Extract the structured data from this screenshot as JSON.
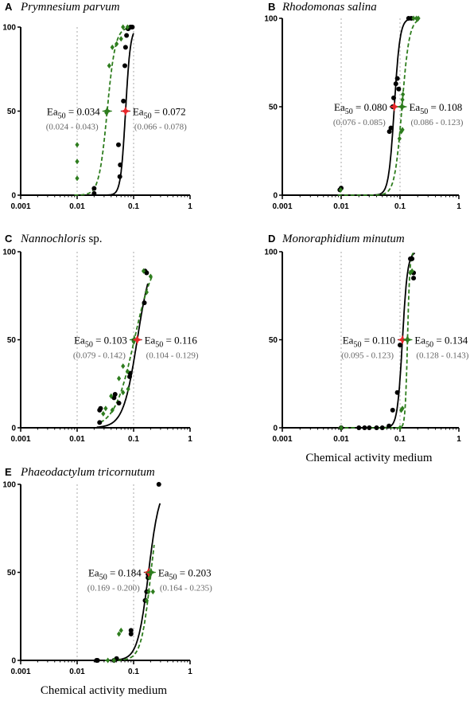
{
  "chart_data": [
    {
      "type": "scatter",
      "panel": "A",
      "title": "Prymnesium parvum",
      "xlabel": "",
      "x_scale": "log",
      "xlim": [
        0.001,
        1
      ],
      "ylim": [
        0,
        100
      ],
      "xticks": [
        "0.001",
        "0.01",
        "0.1",
        "1"
      ],
      "yticks": [
        "0",
        "50",
        "100"
      ],
      "reference_lines": [
        0.01,
        0.1
      ],
      "series": [
        {
          "color": "#000000",
          "marker": "circle",
          "line": "solid",
          "ec50": 0.072,
          "slope": 10,
          "points": [
            [
              0.02,
              1
            ],
            [
              0.02,
              4
            ],
            [
              0.054,
              30
            ],
            [
              0.057,
              11
            ],
            [
              0.058,
              18
            ],
            [
              0.066,
              56
            ],
            [
              0.07,
              77
            ],
            [
              0.072,
              88
            ],
            [
              0.075,
              95
            ],
            [
              0.08,
              99
            ],
            [
              0.088,
              100
            ],
            [
              0.09,
              100
            ],
            [
              0.095,
              100
            ]
          ]
        },
        {
          "color": "#2e7d1e",
          "marker": "diamond",
          "line": "dashed",
          "ec50": 0.034,
          "slope": 6,
          "points": [
            [
              0.01,
              10
            ],
            [
              0.01,
              20
            ],
            [
              0.01,
              30
            ],
            [
              0.033,
              49
            ],
            [
              0.037,
              77
            ],
            [
              0.042,
              88
            ],
            [
              0.05,
              90
            ],
            [
              0.06,
              93
            ],
            [
              0.065,
              100
            ],
            [
              0.078,
              100
            ]
          ]
        }
      ],
      "annotations": [
        {
          "label": "Ea",
          "sub": "50",
          "value": " = 0.034",
          "ci": "(0.024 - 0.043)",
          "side": "left",
          "anchor_x": 0.034
        },
        {
          "label": "Ea",
          "sub": "50",
          "value": " = 0.072",
          "ci": "(0.066 - 0.078)",
          "side": "right",
          "anchor_x": 0.072
        }
      ]
    },
    {
      "type": "scatter",
      "panel": "B",
      "title": "Rhodomonas salina",
      "xlabel": "",
      "x_scale": "log",
      "xlim": [
        0.001,
        1
      ],
      "ylim": [
        0,
        100
      ],
      "xticks": [
        "0.001",
        "0.01",
        "0.1",
        "1"
      ],
      "yticks": [
        "0",
        "50",
        "100"
      ],
      "reference_lines": [
        0.01,
        0.1
      ],
      "series": [
        {
          "color": "#000000",
          "marker": "circle",
          "line": "solid",
          "ec50": 0.08,
          "slope": 9,
          "points": [
            [
              0.0095,
              3
            ],
            [
              0.01,
              4
            ],
            [
              0.066,
              36
            ],
            [
              0.07,
              38
            ],
            [
              0.075,
              50
            ],
            [
              0.078,
              55
            ],
            [
              0.085,
              63
            ],
            [
              0.09,
              66
            ],
            [
              0.095,
              60
            ],
            [
              0.14,
              100
            ],
            [
              0.155,
              100
            ]
          ]
        },
        {
          "color": "#2e7d1e",
          "marker": "diamond",
          "line": "dashed",
          "ec50": 0.108,
          "slope": 7,
          "points": [
            [
              0.0098,
              3
            ],
            [
              0.098,
              32
            ],
            [
              0.105,
              36
            ],
            [
              0.11,
              37
            ],
            [
              0.11,
              54
            ],
            [
              0.112,
              57
            ],
            [
              0.17,
              100
            ],
            [
              0.19,
              100
            ],
            [
              0.205,
              100
            ]
          ]
        }
      ],
      "annotations": [
        {
          "label": "Ea",
          "sub": "50",
          "value": " = 0.080",
          "ci": "(0.076 - 0.085)",
          "side": "left",
          "anchor_x": 0.08
        },
        {
          "label": "Ea",
          "sub": "50",
          "value": " = 0.108",
          "ci": "(0.086 - 0.123)",
          "side": "right",
          "anchor_x": 0.108
        }
      ]
    },
    {
      "type": "scatter",
      "panel": "C",
      "title": "Nannochloris",
      "title_suffix": " sp.",
      "xlabel": "",
      "x_scale": "log",
      "xlim": [
        0.001,
        1
      ],
      "ylim": [
        0,
        100
      ],
      "xticks": [
        "0.001",
        "0.01",
        "0.1",
        "1"
      ],
      "yticks": [
        "0",
        "50",
        "100"
      ],
      "reference_lines": [
        0.01,
        0.1
      ],
      "series": [
        {
          "color": "#000000",
          "marker": "circle",
          "line": "solid",
          "ec50": 0.116,
          "slope": 3.5,
          "points": [
            [
              0.025,
              3
            ],
            [
              0.025,
              10
            ],
            [
              0.026,
              11
            ],
            [
              0.045,
              17
            ],
            [
              0.047,
              19
            ],
            [
              0.055,
              14
            ],
            [
              0.085,
              29
            ],
            [
              0.087,
              31
            ],
            [
              0.155,
              71
            ],
            [
              0.16,
              89
            ],
            [
              0.17,
              88
            ]
          ]
        },
        {
          "color": "#2e7d1e",
          "marker": "diamond",
          "line": "dashed",
          "ec50": 0.103,
          "slope": 2.5,
          "points": [
            [
              0.029,
              8
            ],
            [
              0.032,
              11
            ],
            [
              0.04,
              18
            ],
            [
              0.042,
              10
            ],
            [
              0.055,
              28
            ],
            [
              0.065,
              20
            ],
            [
              0.065,
              35
            ],
            [
              0.078,
              32
            ],
            [
              0.08,
              22
            ],
            [
              0.1,
              49
            ],
            [
              0.15,
              89
            ],
            [
              0.17,
              77
            ],
            [
              0.2,
              86
            ]
          ]
        }
      ],
      "annotations": [
        {
          "label": "Ea",
          "sub": "50",
          "value": " = 0.103",
          "ci": "(0.079 - 0.142)",
          "side": "left",
          "anchor_x": 0.103
        },
        {
          "label": "Ea",
          "sub": "50",
          "value": " = 0.116",
          "ci": "(0.104 - 0.129)",
          "side": "right",
          "anchor_x": 0.116
        }
      ]
    },
    {
      "type": "scatter",
      "panel": "D",
      "title": "Monoraphidium minutum",
      "xlabel": "Chemical activity medium",
      "x_scale": "log",
      "xlim": [
        0.001,
        1
      ],
      "ylim": [
        0,
        100
      ],
      "xticks": [
        "0.001",
        "0.01",
        "0.1",
        "1"
      ],
      "yticks": [
        "0",
        "50",
        "100"
      ],
      "reference_lines": [
        0.01,
        0.1
      ],
      "series": [
        {
          "color": "#000000",
          "marker": "circle",
          "line": "solid",
          "ec50": 0.11,
          "slope": 10,
          "points": [
            [
              0.01,
              0
            ],
            [
              0.02,
              0
            ],
            [
              0.025,
              0
            ],
            [
              0.03,
              0
            ],
            [
              0.04,
              0
            ],
            [
              0.05,
              0
            ],
            [
              0.065,
              1
            ],
            [
              0.075,
              10
            ],
            [
              0.09,
              20
            ],
            [
              0.1,
              47
            ],
            [
              0.15,
              96
            ],
            [
              0.16,
              96
            ],
            [
              0.17,
              88
            ],
            [
              0.17,
              85
            ]
          ]
        },
        {
          "color": "#2e7d1e",
          "marker": "diamond",
          "line": "dashed",
          "ec50": 0.134,
          "slope": 22,
          "points": [
            [
              0.01,
              0
            ],
            [
              0.1,
              0
            ],
            [
              0.105,
              10
            ],
            [
              0.11,
              11
            ],
            [
              0.15,
              88
            ],
            [
              0.16,
              89
            ]
          ]
        }
      ],
      "annotations": [
        {
          "label": "Ea",
          "sub": "50",
          "value": " = 0.110",
          "ci": "(0.095 - 0.123)",
          "side": "left",
          "anchor_x": 0.11
        },
        {
          "label": "Ea",
          "sub": "50",
          "value": " = 0.134",
          "ci": "(0.128 - 0.143)",
          "side": "right",
          "anchor_x": 0.134
        }
      ]
    },
    {
      "type": "scatter",
      "panel": "E",
      "title": "Phaeodactylum tricornutum",
      "xlabel": "Chemical activity medium",
      "x_scale": "log",
      "xlim": [
        0.001,
        1
      ],
      "ylim": [
        0,
        100
      ],
      "xticks": [
        "0.001",
        "0.01",
        "0.1",
        "1"
      ],
      "yticks": [
        "0",
        "50",
        "100"
      ],
      "reference_lines": [
        0.01,
        0.1
      ],
      "series": [
        {
          "color": "#000000",
          "marker": "circle",
          "line": "solid",
          "ec50": 0.184,
          "slope": 4.5,
          "points": [
            [
              0.022,
              0
            ],
            [
              0.023,
              0
            ],
            [
              0.045,
              0
            ],
            [
              0.05,
              1
            ],
            [
              0.09,
              15
            ],
            [
              0.09,
              17
            ],
            [
              0.16,
              34
            ],
            [
              0.17,
              39
            ],
            [
              0.18,
              47
            ],
            [
              0.18,
              49
            ],
            [
              0.28,
              100
            ]
          ]
        },
        {
          "color": "#2e7d1e",
          "marker": "diamond",
          "line": "dashed",
          "ec50": 0.203,
          "slope": 5,
          "points": [
            [
              0.035,
              0
            ],
            [
              0.045,
              0
            ],
            [
              0.055,
              15
            ],
            [
              0.06,
              17
            ],
            [
              0.17,
              34
            ],
            [
              0.185,
              39
            ],
            [
              0.19,
              47
            ],
            [
              0.22,
              39
            ]
          ]
        }
      ],
      "annotations": [
        {
          "label": "Ea",
          "sub": "50",
          "value": " = 0.184",
          "ci": "(0.169 - 0.200)",
          "side": "left",
          "anchor_x": 0.184
        },
        {
          "label": "Ea",
          "sub": "50",
          "value": " = 0.203",
          "ci": "(0.164 - 0.235)",
          "side": "right",
          "anchor_x": 0.203
        }
      ]
    }
  ]
}
